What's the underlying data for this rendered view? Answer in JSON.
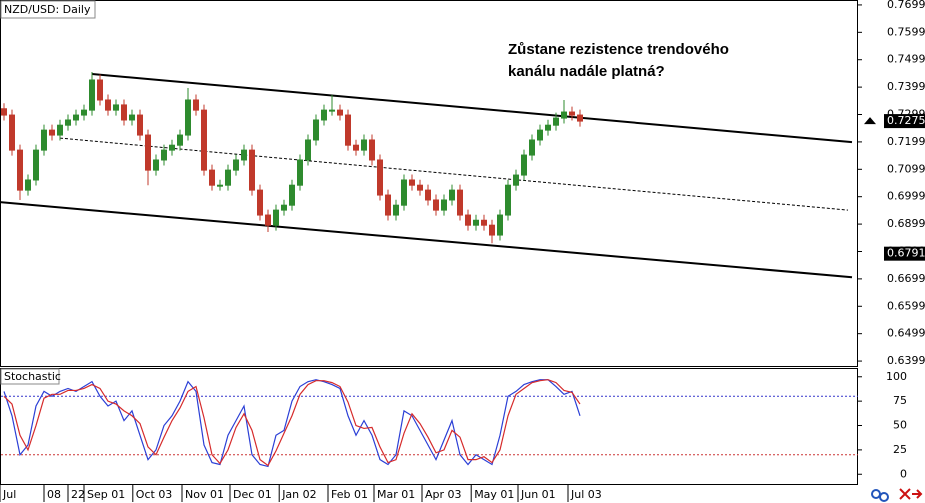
{
  "chart_data": [
    {
      "type": "candlestick",
      "title": "NZD/USD: Daily",
      "annotation": [
        "Zůstane rezistence trendového",
        "kanálu nadále platná?"
      ],
      "open": [
        0.732,
        0.7297,
        0.7169,
        0.7023,
        0.706,
        0.7169,
        0.7242,
        0.7224,
        0.726,
        0.7279,
        0.7297,
        0.7315,
        0.7425,
        0.7352,
        0.7315,
        0.7334,
        0.7279,
        0.7297,
        0.7224,
        0.7096,
        0.7133,
        0.7169,
        0.7187,
        0.7224,
        0.7352,
        0.7315,
        0.7096,
        0.7041,
        0.7041,
        0.7096,
        0.7133,
        0.7169,
        0.7023,
        0.6932,
        0.6895,
        0.695,
        0.6968,
        0.7041,
        0.7133,
        0.7206,
        0.7279,
        0.7315,
        0.7315,
        0.7297,
        0.7187,
        0.7169,
        0.7206,
        0.7133,
        0.7005,
        0.6932,
        0.6968,
        0.706,
        0.7041,
        0.7023,
        0.6987,
        0.695,
        0.6987,
        0.7023,
        0.6932,
        0.6895,
        0.6913,
        0.6895,
        0.6859,
        0.6932,
        0.7041,
        0.7078,
        0.7151,
        0.7206,
        0.7242,
        0.726,
        0.7286,
        0.7308,
        0.7297
      ],
      "high": [
        0.734,
        0.7317,
        0.7189,
        0.708,
        0.7189,
        0.7262,
        0.7262,
        0.728,
        0.7299,
        0.7317,
        0.7335,
        0.7454,
        0.7445,
        0.7372,
        0.7354,
        0.7354,
        0.7317,
        0.7317,
        0.7244,
        0.7153,
        0.7189,
        0.7207,
        0.7244,
        0.7396,
        0.7372,
        0.7335,
        0.7116,
        0.7061,
        0.7116,
        0.7153,
        0.7189,
        0.7189,
        0.7043,
        0.6952,
        0.697,
        0.6988,
        0.7061,
        0.7153,
        0.7226,
        0.7299,
        0.7335,
        0.737,
        0.7335,
        0.7317,
        0.7207,
        0.7226,
        0.7226,
        0.7153,
        0.7025,
        0.6988,
        0.708,
        0.708,
        0.7061,
        0.7043,
        0.7007,
        0.7007,
        0.7043,
        0.7043,
        0.6952,
        0.6933,
        0.6933,
        0.6915,
        0.6952,
        0.7061,
        0.7098,
        0.7171,
        0.7226,
        0.7262,
        0.728,
        0.7306,
        0.7352,
        0.7328,
        0.7317
      ],
      "low": [
        0.7277,
        0.7149,
        0.6987,
        0.7003,
        0.704,
        0.7149,
        0.7204,
        0.7204,
        0.724,
        0.7259,
        0.7277,
        0.7295,
        0.7332,
        0.7295,
        0.7295,
        0.7259,
        0.7259,
        0.7204,
        0.7041,
        0.7076,
        0.7113,
        0.7149,
        0.7167,
        0.7204,
        0.7295,
        0.7076,
        0.7021,
        0.7021,
        0.7021,
        0.7076,
        0.7113,
        0.7003,
        0.6912,
        0.687,
        0.6875,
        0.693,
        0.6948,
        0.7021,
        0.7113,
        0.7186,
        0.7259,
        0.7295,
        0.7277,
        0.7167,
        0.7149,
        0.7149,
        0.7113,
        0.6985,
        0.6912,
        0.6912,
        0.6948,
        0.7021,
        0.7003,
        0.6967,
        0.693,
        0.693,
        0.6967,
        0.6912,
        0.6875,
        0.6875,
        0.6875,
        0.6829,
        0.6839,
        0.6912,
        0.7021,
        0.7058,
        0.7131,
        0.7186,
        0.7222,
        0.724,
        0.7266,
        0.7277,
        0.7255
      ],
      "close": [
        0.7297,
        0.7169,
        0.7023,
        0.706,
        0.7169,
        0.7242,
        0.7224,
        0.726,
        0.7279,
        0.7297,
        0.7315,
        0.7425,
        0.7352,
        0.7315,
        0.7334,
        0.7279,
        0.7297,
        0.7224,
        0.7096,
        0.7133,
        0.7169,
        0.7187,
        0.7224,
        0.7352,
        0.7315,
        0.7096,
        0.7041,
        0.7041,
        0.7096,
        0.7133,
        0.7169,
        0.7023,
        0.6932,
        0.6895,
        0.695,
        0.6968,
        0.7041,
        0.7133,
        0.7206,
        0.7279,
        0.7315,
        0.7315,
        0.7297,
        0.7187,
        0.7169,
        0.7206,
        0.7133,
        0.7005,
        0.6932,
        0.6968,
        0.706,
        0.7041,
        0.7023,
        0.6987,
        0.695,
        0.6987,
        0.7023,
        0.6932,
        0.6895,
        0.6913,
        0.6895,
        0.6859,
        0.6932,
        0.7041,
        0.7078,
        0.7151,
        0.7206,
        0.7242,
        0.726,
        0.7286,
        0.7308,
        0.7297,
        0.7275
      ],
      "up_color": "#2e8b2e",
      "down_color": "#c0392b",
      "xlim": [
        -0.5,
        106.75
      ],
      "xticks": [
        {
          "value": -0.5,
          "label": "Jul"
        },
        {
          "value": 5,
          "label": "08"
        },
        {
          "value": 8,
          "label": "22"
        },
        {
          "value": 10,
          "label": "Sep 01"
        },
        {
          "value": 16.1,
          "label": "Oct 03"
        },
        {
          "value": 22.25,
          "label": "Nov 01"
        },
        {
          "value": 28.25,
          "label": "Dec 01"
        },
        {
          "value": 34.4,
          "label": "Jan 02"
        },
        {
          "value": 40.5,
          "label": "Feb 01"
        },
        {
          "value": 46.25,
          "label": "Mar 01"
        },
        {
          "value": 52.25,
          "label": "Apr 03"
        },
        {
          "value": 58.4,
          "label": "May 01"
        },
        {
          "value": 64.25,
          "label": "Jun 01"
        },
        {
          "value": 70.5,
          "label": "Jul 03"
        }
      ],
      "ylim": [
        0.6381,
        0.7717
      ],
      "yticks": [
        0.7699,
        0.7599,
        0.7499,
        0.7399,
        0.7299,
        0.7199,
        0.7099,
        0.6999,
        0.6899,
        0.6799,
        0.6699,
        0.6599,
        0.6499,
        0.6399
      ],
      "trendlines": [
        {
          "x": [
            11,
            106
          ],
          "y": [
            0.7447,
            0.7198
          ],
          "style": "solid"
        },
        {
          "x": [
            -0.5,
            106
          ],
          "y": [
            0.6979,
            0.6705
          ],
          "style": "solid"
        },
        {
          "x": [
            7,
            105.5
          ],
          "y": [
            0.7213,
            0.695
          ],
          "style": "dashed"
        }
      ],
      "price_labels": [
        0.7275,
        0.6791
      ]
    },
    {
      "type": "line",
      "title": "Stochastic",
      "series": [
        {
          "color": "#2b3fd6",
          "values": [
            85,
            60,
            20,
            30,
            70,
            85,
            80,
            85,
            88,
            85,
            90,
            95,
            80,
            70,
            75,
            55,
            65,
            40,
            15,
            25,
            50,
            60,
            75,
            95,
            85,
            30,
            12,
            10,
            40,
            55,
            70,
            20,
            10,
            8,
            40,
            45,
            75,
            90,
            95,
            97,
            95,
            92,
            88,
            60,
            40,
            55,
            40,
            15,
            10,
            20,
            65,
            60,
            45,
            30,
            15,
            35,
            55,
            20,
            10,
            20,
            15,
            10,
            40,
            80,
            85,
            92,
            95,
            97,
            97,
            90,
            82,
            85,
            60
          ]
        },
        {
          "color": "#d62b2b",
          "values": [
            80,
            72,
            40,
            25,
            50,
            78,
            82,
            82,
            86,
            86,
            88,
            92,
            88,
            75,
            72,
            65,
            60,
            52,
            28,
            20,
            38,
            55,
            68,
            85,
            90,
            58,
            20,
            11,
            25,
            48,
            62,
            45,
            15,
            9,
            24,
            42,
            60,
            82,
            92,
            96,
            96,
            94,
            90,
            74,
            50,
            47,
            48,
            28,
            12,
            15,
            42,
            62,
            52,
            38,
            22,
            25,
            45,
            38,
            15,
            15,
            18,
            12,
            25,
            60,
            82,
            88,
            94,
            96,
            97,
            94,
            86,
            84,
            72
          ]
        }
      ],
      "ylim": [
        -10,
        109
      ],
      "yticks": [
        0,
        25,
        50,
        75,
        100
      ],
      "levels": [
        {
          "value": 80,
          "color": "#3333cc"
        },
        {
          "value": 20,
          "color": "#cc3333"
        }
      ]
    }
  ]
}
